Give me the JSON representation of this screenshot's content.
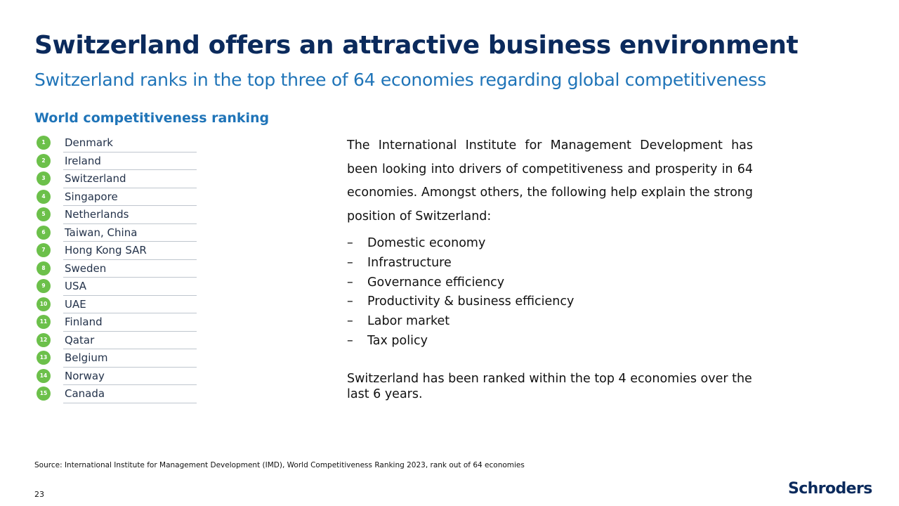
{
  "header": {
    "title": "Switzerland offers an attractive business environment",
    "subtitle": "Switzerland ranks in the top three of 64 economies regarding global competitiveness"
  },
  "ranking": {
    "heading": "World competitiveness ranking",
    "badge_color": "#6cc04a",
    "items": [
      {
        "rank": "1",
        "country": "Denmark"
      },
      {
        "rank": "2",
        "country": "Ireland"
      },
      {
        "rank": "3",
        "country": "Switzerland"
      },
      {
        "rank": "4",
        "country": "Singapore"
      },
      {
        "rank": "5",
        "country": "Netherlands"
      },
      {
        "rank": "6",
        "country": "Taiwan, China"
      },
      {
        "rank": "7",
        "country": "Hong Kong SAR"
      },
      {
        "rank": "8",
        "country": "Sweden"
      },
      {
        "rank": "9",
        "country": "USA"
      },
      {
        "rank": "10",
        "country": "UAE"
      },
      {
        "rank": "11",
        "country": "Finland"
      },
      {
        "rank": "12",
        "country": "Qatar"
      },
      {
        "rank": "13",
        "country": "Belgium"
      },
      {
        "rank": "14",
        "country": "Norway"
      },
      {
        "rank": "15",
        "country": "Canada"
      }
    ]
  },
  "body": {
    "intro": "The International Institute for Management Development has been looking into drivers of competitiveness and prosperity in 64 economies. Amongst others, the following help explain the strong position of Switzerland:",
    "dash": "–",
    "factors": [
      "Domestic economy",
      "Infrastructure",
      "Governance efficiency",
      "Productivity &  business efficiency",
      "Labor market",
      "Tax policy"
    ],
    "closing": "Switzerland has been ranked within the top 4 economies over the last 6 years."
  },
  "footer": {
    "source": "Source: International Institute for Management Development (IMD), World Competitiveness Ranking 2023, rank out of 64 economies",
    "page_number": "23",
    "logo_text": "Schroders"
  },
  "colors": {
    "title": "#0b2a5c",
    "accent": "#1f74b8",
    "badge": "#6cc04a"
  }
}
